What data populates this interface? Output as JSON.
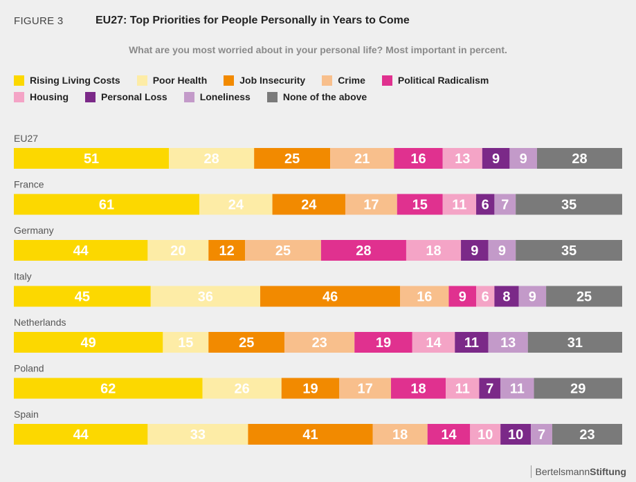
{
  "figure_label": "FIGURE 3",
  "title": "EU27: Top Priorities for People Personally in Years to Come",
  "subtitle": "What are you most worried about in your personal life? Most important in percent.",
  "footer": {
    "brand_part1": "Bertelsmann",
    "brand_part2": "Stiftung"
  },
  "chart_data": {
    "type": "bar",
    "stacked": true,
    "orientation": "horizontal",
    "title": "EU27: Top Priorities for People Personally in Years to Come",
    "subtitle": "What are you most worried about in your personal life? Most important in percent.",
    "categories": [
      "EU27",
      "France",
      "Germany",
      "Italy",
      "Netherlands",
      "Poland",
      "Spain"
    ],
    "legend_position": "top",
    "grid": false,
    "series": [
      {
        "name": "Rising Living Costs",
        "color": "#fcd800",
        "label_color": "#ffffff",
        "values": [
          51,
          61,
          44,
          45,
          49,
          62,
          44
        ]
      },
      {
        "name": "Poor Health",
        "color": "#fdeca6",
        "label_color": "#ffffff",
        "values": [
          28,
          24,
          20,
          36,
          15,
          26,
          33
        ]
      },
      {
        "name": "Job Insecurity",
        "color": "#f28a00",
        "label_color": "#ffffff",
        "values": [
          25,
          24,
          12,
          46,
          25,
          19,
          41
        ]
      },
      {
        "name": "Crime",
        "color": "#f8bf8c",
        "label_color": "#ffffff",
        "values": [
          21,
          17,
          25,
          16,
          23,
          17,
          18
        ]
      },
      {
        "name": "Political Radicalism",
        "color": "#e0318f",
        "label_color": "#ffffff",
        "values": [
          16,
          15,
          28,
          9,
          19,
          18,
          14
        ]
      },
      {
        "name": "Housing",
        "color": "#f4a4c6",
        "label_color": "#ffffff",
        "values": [
          13,
          11,
          18,
          6,
          14,
          11,
          10
        ]
      },
      {
        "name": "Personal Loss",
        "color": "#7b2988",
        "label_color": "#ffffff",
        "values": [
          9,
          6,
          9,
          8,
          11,
          7,
          10
        ]
      },
      {
        "name": "Loneliness",
        "color": "#c39ac9",
        "label_color": "#ffffff",
        "values": [
          9,
          7,
          9,
          9,
          13,
          11,
          7
        ]
      },
      {
        "name": "None of the above",
        "color": "#7a7a7a",
        "label_color": "#ffffff",
        "values": [
          28,
          35,
          35,
          25,
          31,
          29,
          23
        ]
      }
    ]
  }
}
